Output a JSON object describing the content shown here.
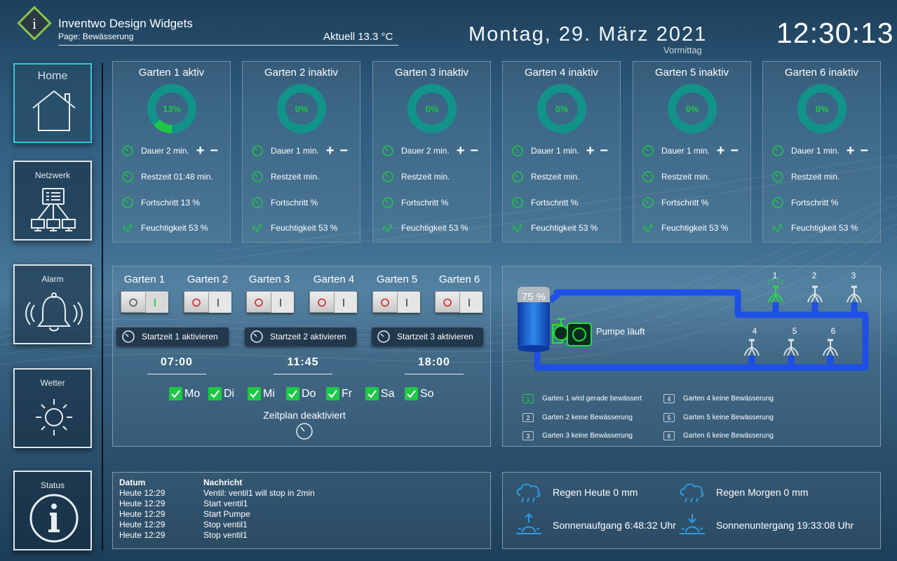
{
  "header": {
    "app_title": "Inventwo Design Widgets",
    "page_label": "Page: Bewässerung",
    "temperature": "Aktuell 13.3 °C",
    "date": "Montag, 29. März 2021",
    "ampm": "Vormittag",
    "clock": "12:30:13"
  },
  "sidebar": {
    "items": [
      {
        "label": "Home",
        "icon": "house-icon",
        "active": true
      },
      {
        "label": "Netzwerk",
        "icon": "network-icon",
        "active": false
      },
      {
        "label": "Alarm",
        "icon": "bell-icon",
        "active": false
      },
      {
        "label": "Wetter",
        "icon": "sun-icon",
        "active": false
      },
      {
        "label": "Status",
        "icon": "info-icon",
        "active": false
      }
    ]
  },
  "gardens": [
    {
      "title": "Garten 1 aktiv",
      "percent_label": "13%",
      "progress": 0.13,
      "dauer": "Dauer 2 min.",
      "restzeit": "Restzeit 01:48 min.",
      "fortschritt": "Fortschritt 13 %",
      "feuchtigkeit": "Feuchtigkeit 53 %"
    },
    {
      "title": "Garten 2 inaktiv",
      "percent_label": "0%",
      "progress": 0,
      "dauer": "Dauer 1 min.",
      "restzeit": "Restzeit min.",
      "fortschritt": "Fortschritt %",
      "feuchtigkeit": "Feuchtigkeit 53 %"
    },
    {
      "title": "Garten 3 inaktiv",
      "percent_label": "0%",
      "progress": 0,
      "dauer": "Dauer 2 min.",
      "restzeit": "Restzeit min.",
      "fortschritt": "Fortschritt %",
      "feuchtigkeit": "Feuchtigkeit 53 %"
    },
    {
      "title": "Garten 4 inaktiv",
      "percent_label": "0%",
      "progress": 0,
      "dauer": "Dauer 1 min.",
      "restzeit": "Restzeit min.",
      "fortschritt": "Fortschritt %",
      "feuchtigkeit": "Feuchtigkeit 53 %"
    },
    {
      "title": "Garten 5 inaktiv",
      "percent_label": "0%",
      "progress": 0,
      "dauer": "Dauer 1 min.",
      "restzeit": "Restzeit min.",
      "fortschritt": "Fortschritt %",
      "feuchtigkeit": "Feuchtigkeit 53 %"
    },
    {
      "title": "Garten 6 inaktiv",
      "percent_label": "0%",
      "progress": 0,
      "dauer": "Dauer 1 min.",
      "restzeit": "Restzeit min.",
      "fortschritt": "Fortschritt %",
      "feuchtigkeit": "Feuchtigkeit 53 %"
    }
  ],
  "controls": {
    "plus_label": "+",
    "minus_label": "−"
  },
  "switches": [
    {
      "label": "Garten 1",
      "on": true
    },
    {
      "label": "Garten 2",
      "on": false
    },
    {
      "label": "Garten 3",
      "on": false
    },
    {
      "label": "Garten 4",
      "on": false
    },
    {
      "label": "Garten 5",
      "on": false
    },
    {
      "label": "Garten 6",
      "on": false
    }
  ],
  "schedule": {
    "start_buttons": [
      "Startzeit 1 aktivieren",
      "Startzeit 2 aktivieren",
      "Startzeit 3 aktivieren"
    ],
    "times": [
      "07:00",
      "11:45",
      "18:00"
    ],
    "days": [
      {
        "label": "Mo",
        "checked": true
      },
      {
        "label": "Di",
        "checked": true
      },
      {
        "label": "Mi",
        "checked": true
      },
      {
        "label": "Do",
        "checked": true
      },
      {
        "label": "Fr",
        "checked": true
      },
      {
        "label": "Sa",
        "checked": true
      },
      {
        "label": "So",
        "checked": true
      }
    ],
    "status": "Zeitplan deaktiviert"
  },
  "diagram": {
    "tank_level_label": "75 %",
    "tank_level": 0.75,
    "pump_status": "Pumpe läuft",
    "sprinkler_numbers": [
      "1",
      "2",
      "3",
      "4",
      "5",
      "6"
    ],
    "colors": {
      "pipe": "#1e4fe6",
      "active": "#23e03a",
      "tank": "#1d7de0"
    }
  },
  "legend": [
    {
      "num": "1",
      "text": "Garten 1 wird gerade bewässert",
      "active": true
    },
    {
      "num": "2",
      "text": "Garten 2 keine Bewässerung",
      "active": false
    },
    {
      "num": "3",
      "text": "Garten 3 keine Bewässerung",
      "active": false
    },
    {
      "num": "4",
      "text": "Garten 4 keine Bewässerung",
      "active": false
    },
    {
      "num": "5",
      "text": "Garten 5 keine Bewässerung",
      "active": false
    },
    {
      "num": "6",
      "text": "Garten 6 keine Bewässerung",
      "active": false
    }
  ],
  "log": {
    "col_date": "Datum",
    "col_message": "Nachricht",
    "rows": [
      {
        "date": "Heute 12:29",
        "message": "Ventil: ventil1 will stop in 2min"
      },
      {
        "date": "Heute 12:29",
        "message": "Start ventil1"
      },
      {
        "date": "Heute 12:29",
        "message": "Start Pumpe"
      },
      {
        "date": "Heute 12:29",
        "message": "Stop ventil1"
      },
      {
        "date": "Heute 12:29",
        "message": "Stop ventil1"
      }
    ]
  },
  "weather": {
    "rain_today": "Regen Heute 0 mm",
    "rain_tomorrow": "Regen Morgen 0 mm",
    "sunrise": "Sonnenaufgang 6:48:32 Uhr",
    "sunset": "Sonnenuntergang 19:33:08 Uhr"
  },
  "theme": {
    "accent_green": "#1ec845",
    "ring_teal": "#12938a",
    "active_tile_border": "#35c8dd"
  }
}
